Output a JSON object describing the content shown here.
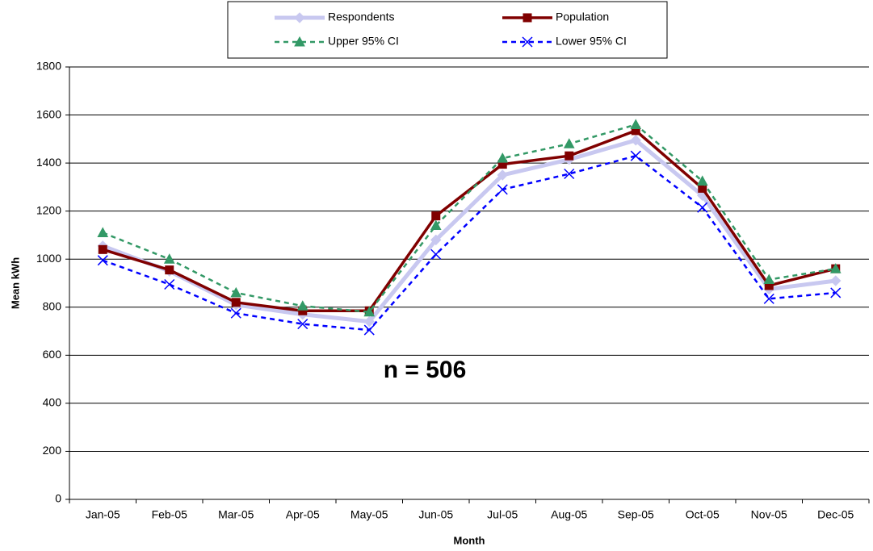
{
  "chart_data": {
    "type": "line",
    "x_label": "Month",
    "y_label": "Mean kWh",
    "annotation": "n = 506",
    "categories": [
      "Jan-05",
      "Feb-05",
      "Mar-05",
      "Apr-05",
      "May-05",
      "Jun-05",
      "Jul-05",
      "Aug-05",
      "Sep-05",
      "Oct-05",
      "Nov-05",
      "Dec-05"
    ],
    "series": [
      {
        "name": "Respondents",
        "color": "#c8c8f0",
        "marker": "diamond",
        "dash": false,
        "width": 5,
        "values": [
          1055,
          950,
          810,
          770,
          740,
          1080,
          1350,
          1415,
          1495,
          1265,
          875,
          910
        ]
      },
      {
        "name": "Population",
        "color": "#800000",
        "marker": "square",
        "dash": false,
        "width": 3.5,
        "values": [
          1040,
          955,
          820,
          785,
          785,
          1180,
          1395,
          1430,
          1535,
          1295,
          890,
          960
        ]
      },
      {
        "name": "Upper 95% CI",
        "color": "#339966",
        "marker": "triangle",
        "dash": true,
        "width": 2.5,
        "values": [
          1110,
          1000,
          860,
          805,
          780,
          1140,
          1420,
          1480,
          1560,
          1325,
          915,
          960
        ]
      },
      {
        "name": "Lower 95% CI",
        "color": "#0000ff",
        "marker": "x",
        "dash": true,
        "width": 2.5,
        "values": [
          995,
          895,
          775,
          730,
          705,
          1020,
          1290,
          1355,
          1430,
          1215,
          835,
          860
        ]
      }
    ],
    "ylim": [
      0,
      1800
    ],
    "yticks": [
      0,
      200,
      400,
      600,
      800,
      1000,
      1200,
      1400,
      1600,
      1800
    ],
    "grid": true,
    "legend": "top"
  }
}
